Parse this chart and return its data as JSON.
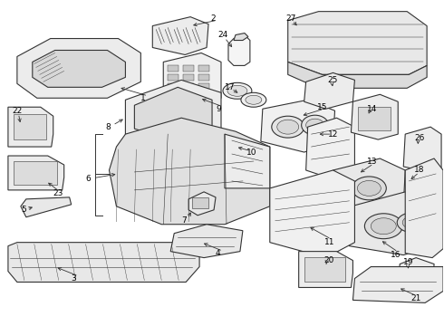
{
  "background_color": "#ffffff",
  "line_color": "#333333",
  "text_color": "#000000",
  "fig_width": 4.9,
  "fig_height": 3.6,
  "dpi": 100
}
